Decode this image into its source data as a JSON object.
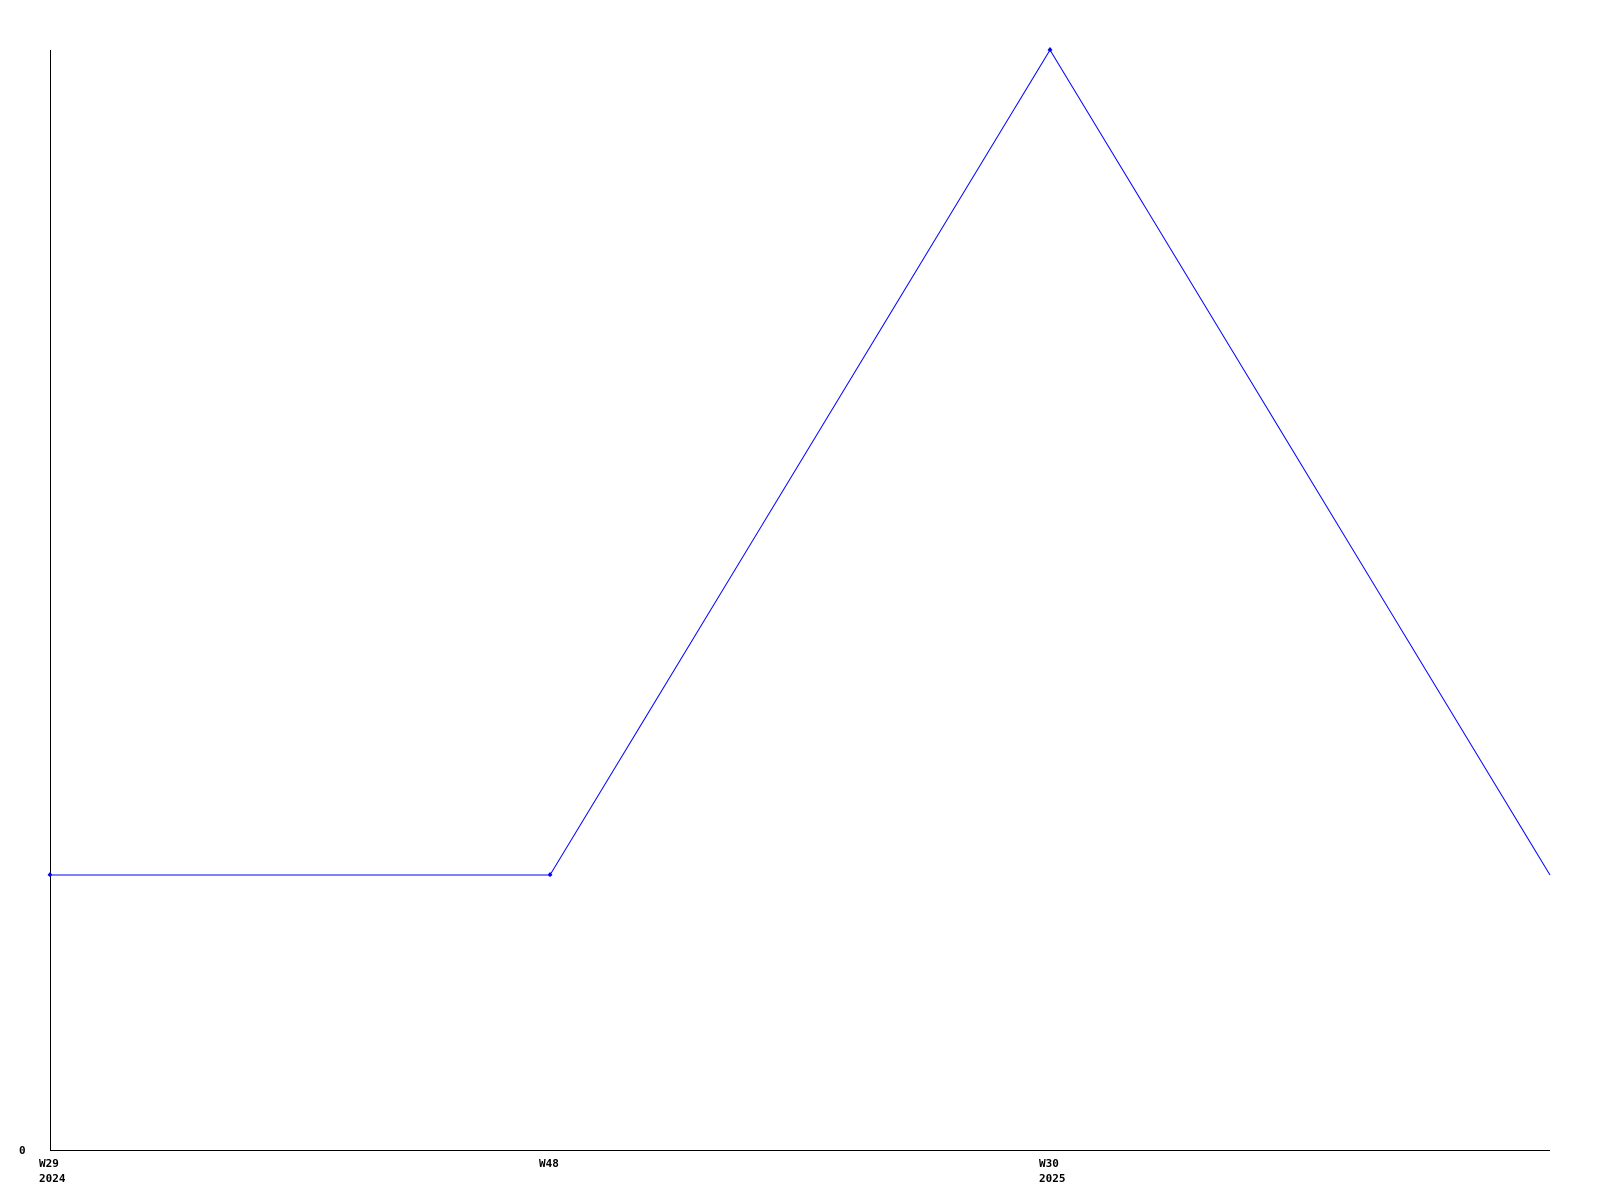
{
  "chart_data": {
    "type": "line",
    "title": "",
    "xlabel": "",
    "ylabel": "",
    "x_tick_labels": [
      {
        "week": "W29",
        "year": "2024"
      },
      {
        "week": "W48",
        "year": ""
      },
      {
        "week": "W30",
        "year": "2025"
      }
    ],
    "y_tick_labels": [
      "0"
    ],
    "ylim": [
      0,
      4
    ],
    "grid": false,
    "legend": "none",
    "series": [
      {
        "color": "#0000ff",
        "x": [
          0,
          1,
          2,
          3
        ],
        "values": [
          1,
          1,
          4,
          1
        ],
        "markers": [
          true,
          true,
          true,
          false
        ]
      }
    ]
  }
}
